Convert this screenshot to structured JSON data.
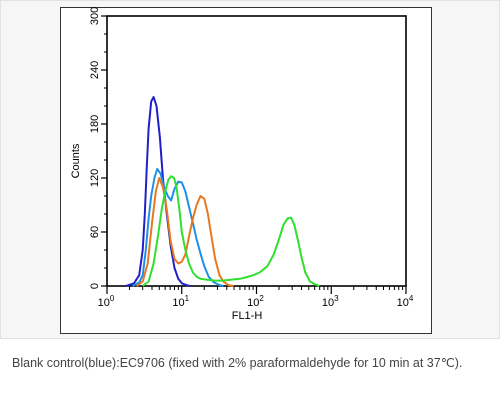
{
  "caption": "Blank control(blue):EC9706 (fixed with 2% paraformaldehyde for 10 min at 37℃).",
  "chart_data": {
    "type": "line",
    "xlabel": "FL1-H",
    "ylabel": "Counts",
    "x_scale": "log",
    "xlim": [
      1,
      10000
    ],
    "ylim": [
      0,
      300
    ],
    "x_ticks": [
      1,
      10,
      100,
      1000,
      10000
    ],
    "x_tick_labels": [
      {
        "base": "10",
        "exp": "0"
      },
      {
        "base": "10",
        "exp": "1"
      },
      {
        "base": "10",
        "exp": "2"
      },
      {
        "base": "10",
        "exp": "3"
      },
      {
        "base": "10",
        "exp": "4"
      }
    ],
    "y_ticks": [
      0,
      60,
      120,
      180,
      240,
      300
    ],
    "y_tick_labels": [
      "0",
      "60",
      "120",
      "180",
      "240",
      "300"
    ],
    "grid": false,
    "series": [
      {
        "color": "#2020c8",
        "points": [
          [
            1.8,
            0
          ],
          [
            2.3,
            3
          ],
          [
            2.7,
            12
          ],
          [
            3.0,
            40
          ],
          [
            3.2,
            80
          ],
          [
            3.4,
            130
          ],
          [
            3.6,
            175
          ],
          [
            3.9,
            205
          ],
          [
            4.2,
            210
          ],
          [
            4.6,
            200
          ],
          [
            5.1,
            165
          ],
          [
            5.6,
            120
          ],
          [
            6.3,
            80
          ],
          [
            7.1,
            45
          ],
          [
            8.0,
            20
          ],
          [
            9.0,
            8
          ],
          [
            10.0,
            3
          ],
          [
            11.5,
            1
          ],
          [
            13,
            0
          ]
        ]
      },
      {
        "color": "#1e90e8",
        "points": [
          [
            2.2,
            0
          ],
          [
            2.7,
            4
          ],
          [
            3.0,
            12
          ],
          [
            3.3,
            40
          ],
          [
            3.6,
            75
          ],
          [
            3.9,
            100
          ],
          [
            4.3,
            120
          ],
          [
            4.7,
            130
          ],
          [
            5.2,
            125
          ],
          [
            5.8,
            110
          ],
          [
            6.5,
            100
          ],
          [
            7.2,
            95
          ],
          [
            8.0,
            108
          ],
          [
            9.0,
            116
          ],
          [
            10.0,
            115
          ],
          [
            11.2,
            105
          ],
          [
            12.5,
            88
          ],
          [
            14.1,
            70
          ],
          [
            15.8,
            52
          ],
          [
            17.8,
            36
          ],
          [
            20,
            22
          ],
          [
            23,
            10
          ],
          [
            27,
            4
          ],
          [
            32,
            1
          ],
          [
            36,
            0
          ]
        ]
      },
      {
        "color": "#e87820",
        "points": [
          [
            2.5,
            0
          ],
          [
            3.0,
            5
          ],
          [
            3.5,
            25
          ],
          [
            4.0,
            70
          ],
          [
            4.5,
            105
          ],
          [
            5.0,
            120
          ],
          [
            5.6,
            110
          ],
          [
            6.3,
            85
          ],
          [
            7.1,
            50
          ],
          [
            8.0,
            30
          ],
          [
            9.0,
            25
          ],
          [
            10,
            27
          ],
          [
            11.2,
            35
          ],
          [
            12.5,
            55
          ],
          [
            14.1,
            75
          ],
          [
            15.8,
            90
          ],
          [
            17.8,
            100
          ],
          [
            20,
            97
          ],
          [
            22.4,
            80
          ],
          [
            25,
            55
          ],
          [
            28,
            30
          ],
          [
            32,
            12
          ],
          [
            36,
            5
          ],
          [
            42,
            1
          ],
          [
            50,
            0
          ]
        ]
      },
      {
        "color": "#30e030",
        "points": [
          [
            3.0,
            0
          ],
          [
            3.6,
            5
          ],
          [
            4.2,
            25
          ],
          [
            4.8,
            55
          ],
          [
            5.4,
            85
          ],
          [
            6.0,
            105
          ],
          [
            6.6,
            118
          ],
          [
            7.2,
            122
          ],
          [
            7.9,
            120
          ],
          [
            8.5,
            110
          ],
          [
            9.3,
            85
          ],
          [
            10,
            60
          ],
          [
            11.2,
            40
          ],
          [
            12.5,
            25
          ],
          [
            14.1,
            15
          ],
          [
            16,
            10
          ],
          [
            18,
            8
          ],
          [
            22,
            7
          ],
          [
            28,
            6
          ],
          [
            35,
            6
          ],
          [
            45,
            7
          ],
          [
            60,
            8
          ],
          [
            75,
            10
          ],
          [
            90,
            12
          ],
          [
            110,
            15
          ],
          [
            140,
            22
          ],
          [
            170,
            35
          ],
          [
            200,
            52
          ],
          [
            230,
            68
          ],
          [
            260,
            75
          ],
          [
            290,
            76
          ],
          [
            320,
            68
          ],
          [
            360,
            50
          ],
          [
            400,
            32
          ],
          [
            450,
            15
          ],
          [
            520,
            5
          ],
          [
            600,
            2
          ],
          [
            700,
            0
          ]
        ]
      }
    ]
  }
}
